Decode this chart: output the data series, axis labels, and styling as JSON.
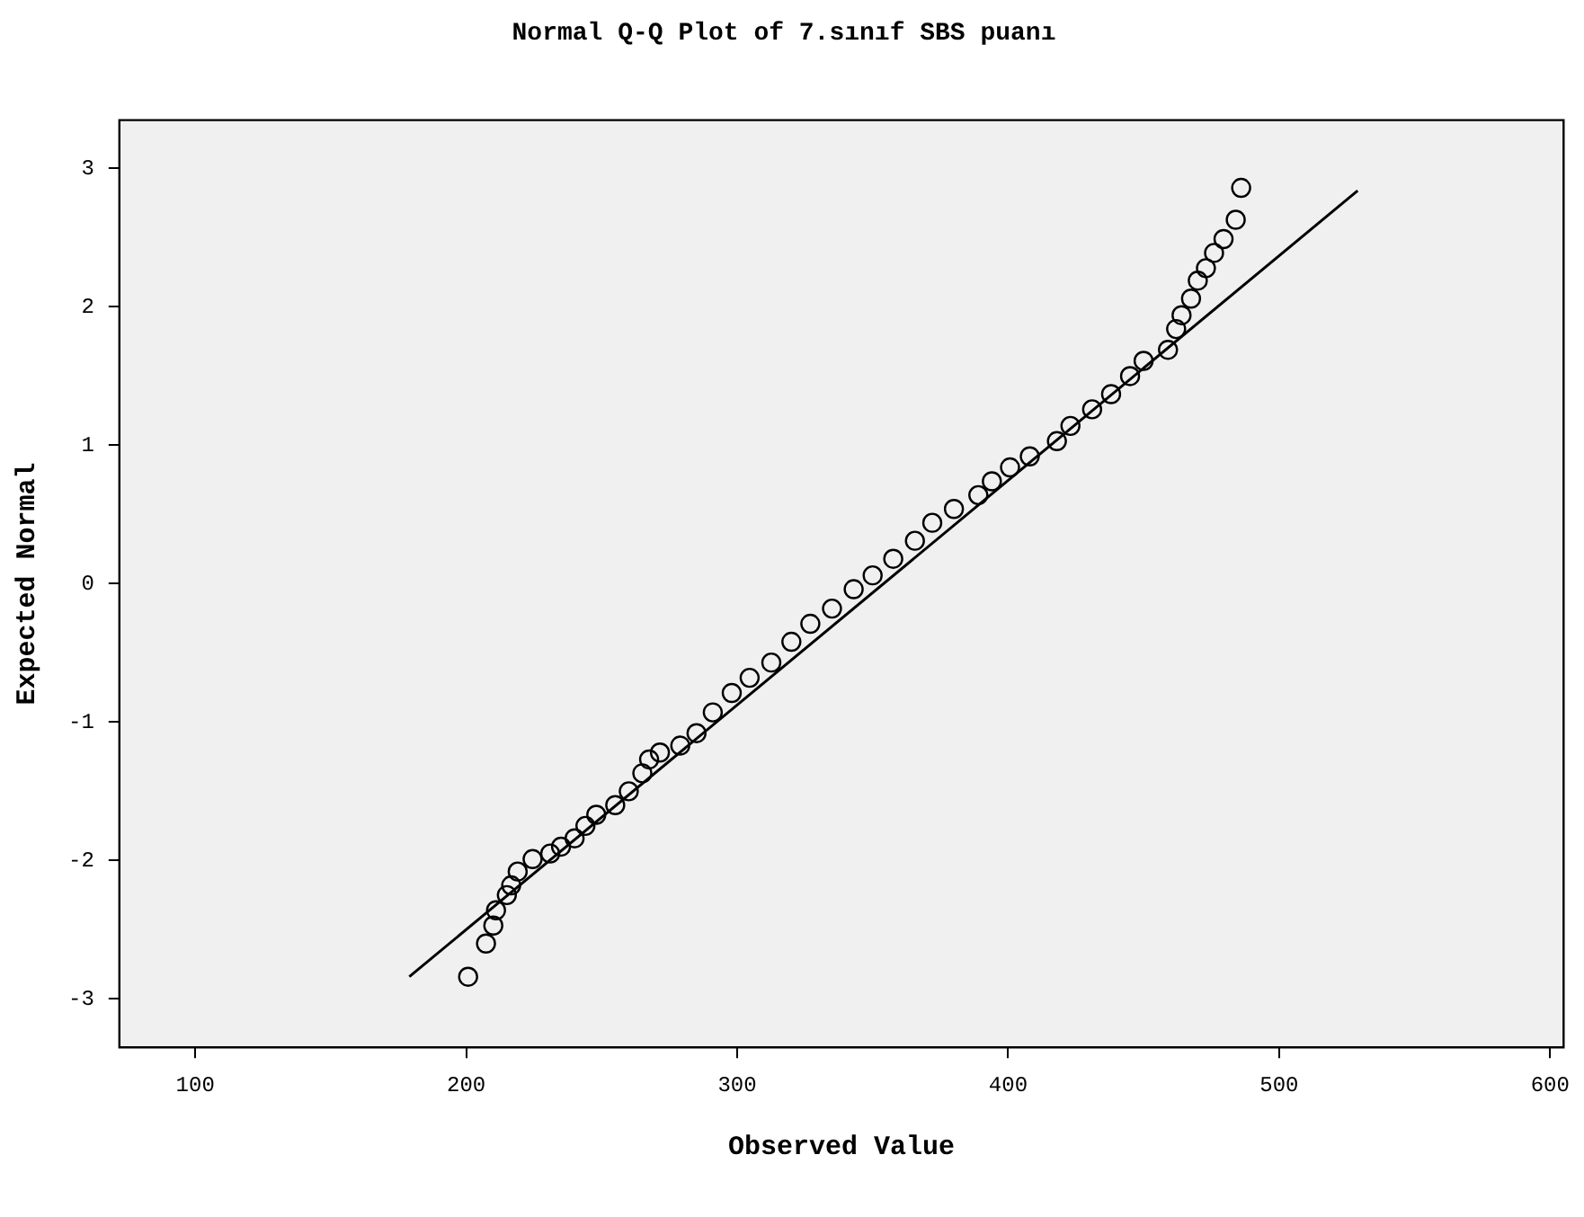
{
  "chart_data": {
    "type": "scatter",
    "title": "Normal Q-Q Plot of 7.sınıf SBS puanı",
    "xlabel": "Observed Value",
    "ylabel": "Expected Normal",
    "xlim": [
      72,
      605
    ],
    "xticks": [
      100,
      200,
      300,
      400,
      500,
      600
    ],
    "ylim": [
      -3.35,
      3.35
    ],
    "yticks": [
      -3,
      -2,
      -1,
      0,
      1,
      2,
      3
    ],
    "grid": false,
    "legend": false,
    "series": [
      {
        "type": "scatter",
        "marker": "circle",
        "color": "#000000",
        "x": [
          200.7,
          207.3,
          210,
          211,
          215,
          216.6,
          219,
          224.5,
          231,
          235,
          240,
          244,
          248,
          255,
          260,
          265,
          267.5,
          271.5,
          279,
          285,
          291,
          298,
          304.6,
          312.6,
          320,
          327,
          335,
          343,
          350,
          357.6,
          365.6,
          372,
          380,
          389,
          394,
          400.7,
          408,
          418,
          423,
          431,
          438,
          445,
          450,
          459,
          462,
          464,
          467.5,
          470,
          473,
          476,
          479.5,
          484,
          486
        ],
        "values": [
          -2.84,
          -2.6,
          -2.47,
          -2.36,
          -2.25,
          -2.18,
          -2.08,
          -1.99,
          -1.95,
          -1.9,
          -1.84,
          -1.75,
          -1.67,
          -1.6,
          -1.5,
          -1.37,
          -1.27,
          -1.22,
          -1.17,
          -1.08,
          -0.93,
          -0.79,
          -0.68,
          -0.57,
          -0.42,
          -0.29,
          -0.18,
          -0.04,
          0.06,
          0.18,
          0.31,
          0.44,
          0.54,
          0.64,
          0.74,
          0.84,
          0.92,
          1.03,
          1.14,
          1.26,
          1.37,
          1.5,
          1.61,
          1.69,
          1.84,
          1.94,
          2.06,
          2.19,
          2.28,
          2.39,
          2.49,
          2.63,
          2.86
        ]
      },
      {
        "type": "line",
        "marker": "none",
        "color": "#000000",
        "x": [
          179,
          529
        ],
        "values": [
          -2.84,
          2.84
        ]
      }
    ]
  }
}
